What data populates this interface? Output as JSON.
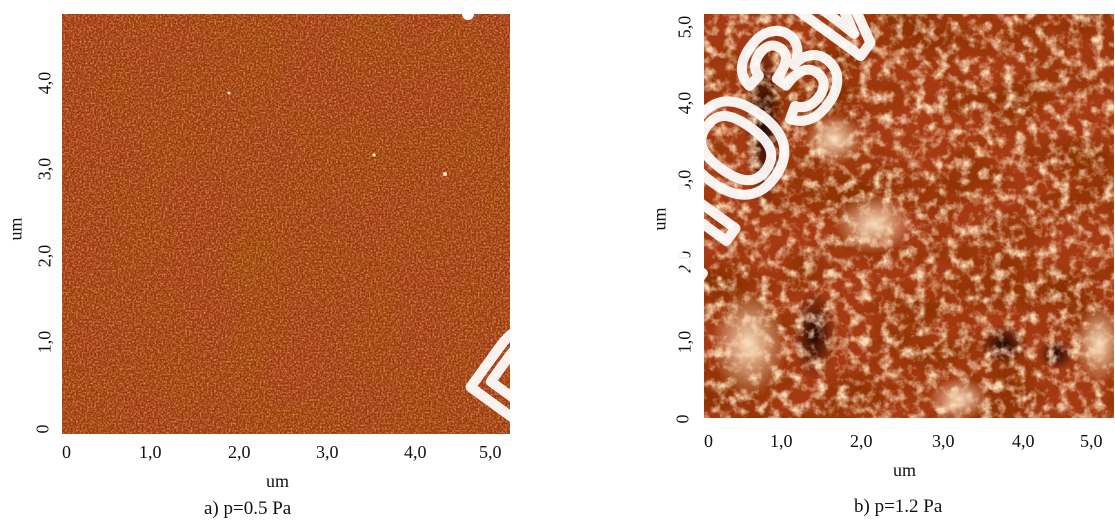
{
  "panel_a": {
    "x_ticks": [
      "0",
      "1,0",
      "2,0",
      "3,0",
      "4,0",
      "5,0"
    ],
    "y_ticks": [
      "0",
      "1,0",
      "2,0",
      "3,0",
      "4,0"
    ],
    "x_label": "um",
    "y_label": "um",
    "caption": "a) p=0.5 Pa"
  },
  "panel_b": {
    "x_ticks": [
      "0",
      "1,0",
      "2,0",
      "3,0",
      "4,0",
      "5,0"
    ],
    "y_ticks": [
      "0",
      "1,0",
      "2,0",
      "3,0",
      "4,0",
      "5,0"
    ],
    "x_label": "um",
    "y_label": "um",
    "caption": "b) p=1.2 Pa"
  },
  "watermark": {
    "text": "Репозиторий"
  },
  "colors": {
    "dark": "#5a1200",
    "mid": "#a8360a",
    "light": "#f2c89a"
  }
}
